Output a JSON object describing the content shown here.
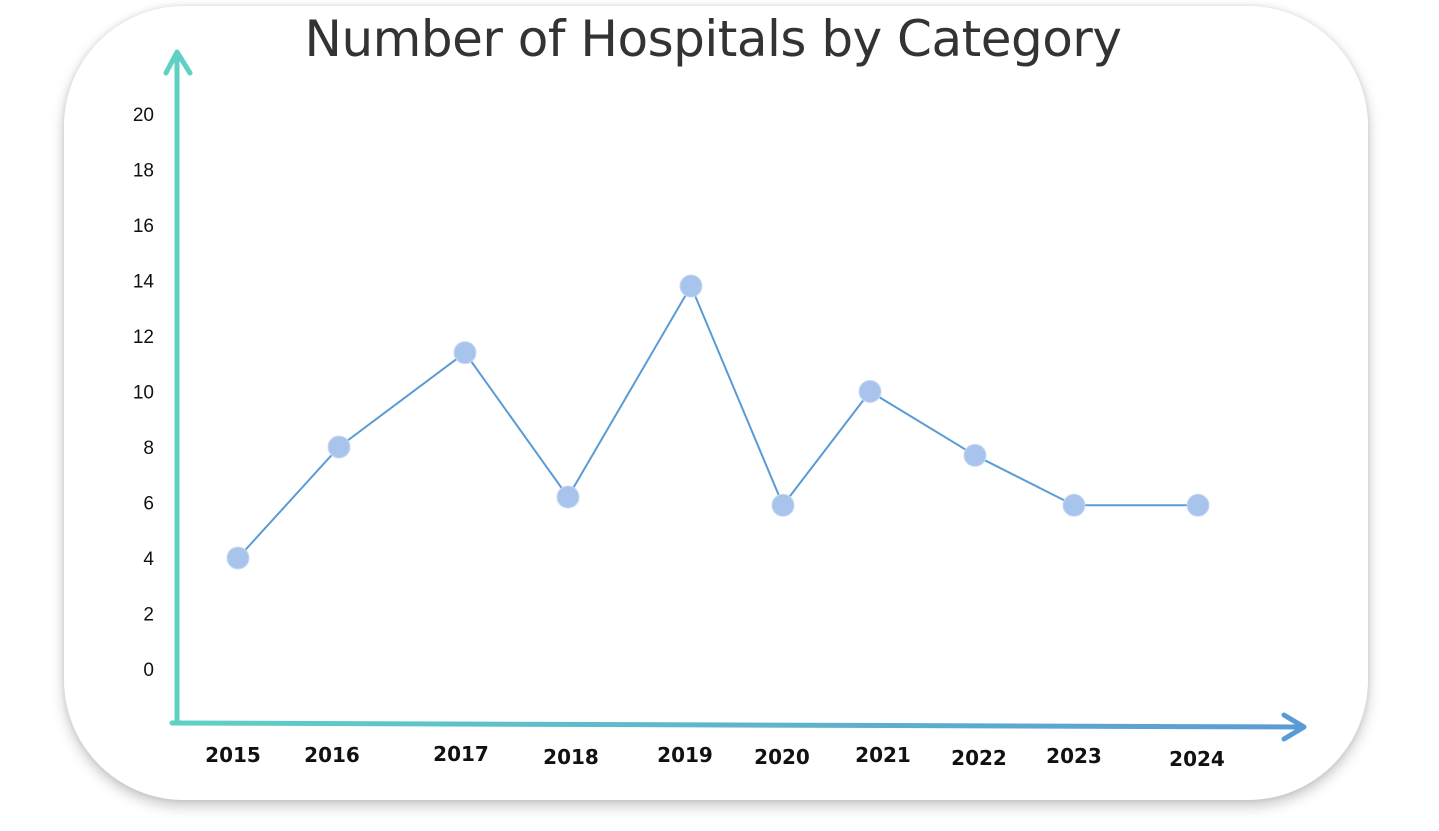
{
  "chart_data": {
    "type": "line",
    "title": "Number of Hospitals by Category",
    "xlabel": "",
    "ylabel": "",
    "categories": [
      "2015",
      "2016",
      "2017",
      "2018",
      "2019",
      "2020",
      "2021",
      "2022",
      "2023",
      "2024"
    ],
    "series": [
      {
        "values": [
          4,
          8,
          11.4,
          6.2,
          13.8,
          5.9,
          10,
          7.7,
          5.9,
          5.9
        ]
      }
    ],
    "yticks": [
      "0",
      "2",
      "4",
      "6",
      "8",
      "10",
      "12",
      "14",
      "16",
      "18",
      "20"
    ],
    "ylim": [
      0,
      20
    ],
    "grid": false,
    "legend": "none",
    "colors": {
      "line": "#5b9bd5",
      "marker": "#a9c4ec",
      "axis_start": "#5fd0c4",
      "axis_end": "#5b9bd5",
      "title": "#333333"
    }
  }
}
